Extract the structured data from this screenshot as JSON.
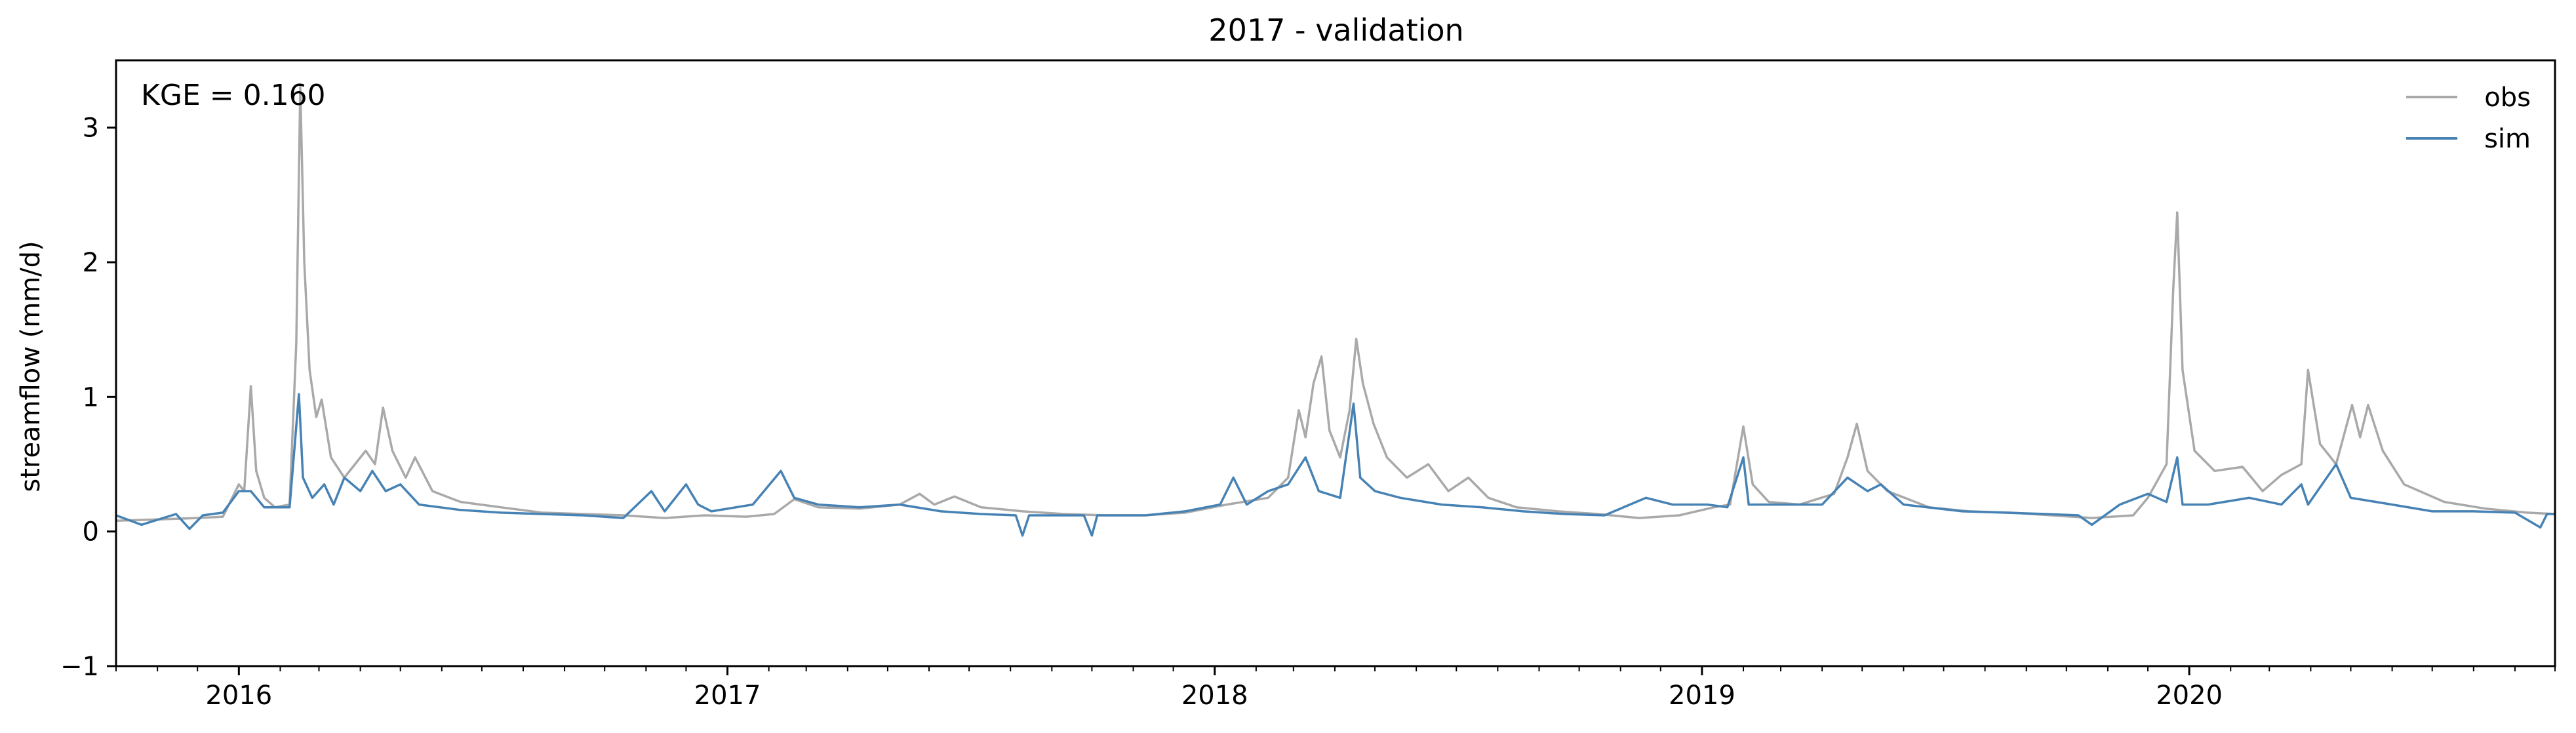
{
  "chart_data": {
    "type": "line",
    "title": "2017 - validation",
    "xlabel": "",
    "ylabel": "streamflow (mm/d)",
    "annotation": "KGE = 0.160",
    "xlim": [
      "2015-10-01",
      "2020-10-01"
    ],
    "ylim": [
      -1,
      3.5
    ],
    "x_ticks": [
      {
        "date": "2016-01-01",
        "label": "2016"
      },
      {
        "date": "2017-01-01",
        "label": "2017"
      },
      {
        "date": "2018-01-01",
        "label": "2018"
      },
      {
        "date": "2019-01-01",
        "label": "2019"
      },
      {
        "date": "2020-01-01",
        "label": "2020"
      }
    ],
    "y_ticks": [
      {
        "value": -1,
        "label": "−1"
      },
      {
        "value": 0,
        "label": "0"
      },
      {
        "value": 1,
        "label": "1"
      },
      {
        "value": 2,
        "label": "2"
      },
      {
        "value": 3,
        "label": "3"
      }
    ],
    "grid": false,
    "legend_position": "top-right",
    "series": [
      {
        "name": "obs",
        "color": "#a9a9a9",
        "points": [
          [
            "2015-10-01",
            0.08
          ],
          [
            "2015-11-01",
            0.09
          ],
          [
            "2015-12-01",
            0.1
          ],
          [
            "2015-12-20",
            0.11
          ],
          [
            "2016-01-01",
            0.35
          ],
          [
            "2016-01-05",
            0.3
          ],
          [
            "2016-01-10",
            1.08
          ],
          [
            "2016-01-14",
            0.45
          ],
          [
            "2016-01-20",
            0.25
          ],
          [
            "2016-01-28",
            0.18
          ],
          [
            "2016-02-08",
            0.2
          ],
          [
            "2016-02-13",
            1.4
          ],
          [
            "2016-02-16",
            3.3
          ],
          [
            "2016-02-19",
            2.0
          ],
          [
            "2016-02-23",
            1.2
          ],
          [
            "2016-02-28",
            0.85
          ],
          [
            "2016-03-03",
            0.98
          ],
          [
            "2016-03-10",
            0.55
          ],
          [
            "2016-03-20",
            0.4
          ],
          [
            "2016-03-28",
            0.5
          ],
          [
            "2016-04-05",
            0.6
          ],
          [
            "2016-04-12",
            0.5
          ],
          [
            "2016-04-18",
            0.92
          ],
          [
            "2016-04-25",
            0.6
          ],
          [
            "2016-05-05",
            0.4
          ],
          [
            "2016-05-12",
            0.55
          ],
          [
            "2016-05-25",
            0.3
          ],
          [
            "2016-06-15",
            0.22
          ],
          [
            "2016-07-15",
            0.18
          ],
          [
            "2016-08-15",
            0.14
          ],
          [
            "2016-09-15",
            0.13
          ],
          [
            "2016-10-15",
            0.12
          ],
          [
            "2016-11-15",
            0.1
          ],
          [
            "2016-12-15",
            0.12
          ],
          [
            "2017-01-15",
            0.11
          ],
          [
            "2017-02-05",
            0.13
          ],
          [
            "2017-02-20",
            0.24
          ],
          [
            "2017-03-10",
            0.18
          ],
          [
            "2017-04-10",
            0.17
          ],
          [
            "2017-05-10",
            0.2
          ],
          [
            "2017-05-25",
            0.28
          ],
          [
            "2017-06-05",
            0.2
          ],
          [
            "2017-06-20",
            0.26
          ],
          [
            "2017-07-10",
            0.18
          ],
          [
            "2017-08-10",
            0.15
          ],
          [
            "2017-09-10",
            0.13
          ],
          [
            "2017-10-10",
            0.12
          ],
          [
            "2017-11-10",
            0.12
          ],
          [
            "2017-12-10",
            0.14
          ],
          [
            "2018-01-10",
            0.2
          ],
          [
            "2018-02-10",
            0.25
          ],
          [
            "2018-02-25",
            0.4
          ],
          [
            "2018-03-05",
            0.9
          ],
          [
            "2018-03-10",
            0.7
          ],
          [
            "2018-03-16",
            1.1
          ],
          [
            "2018-03-22",
            1.3
          ],
          [
            "2018-03-28",
            0.75
          ],
          [
            "2018-04-05",
            0.55
          ],
          [
            "2018-04-12",
            0.9
          ],
          [
            "2018-04-17",
            1.43
          ],
          [
            "2018-04-22",
            1.1
          ],
          [
            "2018-04-30",
            0.8
          ],
          [
            "2018-05-10",
            0.55
          ],
          [
            "2018-05-25",
            0.4
          ],
          [
            "2018-06-10",
            0.5
          ],
          [
            "2018-06-25",
            0.3
          ],
          [
            "2018-07-10",
            0.4
          ],
          [
            "2018-07-25",
            0.25
          ],
          [
            "2018-08-15",
            0.18
          ],
          [
            "2018-09-15",
            0.15
          ],
          [
            "2018-10-15",
            0.13
          ],
          [
            "2018-11-15",
            0.1
          ],
          [
            "2018-12-15",
            0.12
          ],
          [
            "2019-01-10",
            0.18
          ],
          [
            "2019-01-22",
            0.2
          ],
          [
            "2019-02-01",
            0.78
          ],
          [
            "2019-02-08",
            0.35
          ],
          [
            "2019-02-20",
            0.22
          ],
          [
            "2019-03-15",
            0.2
          ],
          [
            "2019-04-10",
            0.28
          ],
          [
            "2019-04-20",
            0.55
          ],
          [
            "2019-04-27",
            0.8
          ],
          [
            "2019-05-05",
            0.45
          ],
          [
            "2019-05-20",
            0.3
          ],
          [
            "2019-06-20",
            0.18
          ],
          [
            "2019-07-20",
            0.15
          ],
          [
            "2019-08-20",
            0.14
          ],
          [
            "2019-09-20",
            0.12
          ],
          [
            "2019-10-20",
            0.1
          ],
          [
            "2019-11-20",
            0.12
          ],
          [
            "2019-12-01",
            0.25
          ],
          [
            "2019-12-15",
            0.5
          ],
          [
            "2019-12-20",
            1.8
          ],
          [
            "2019-12-23",
            2.37
          ],
          [
            "2019-12-27",
            1.2
          ],
          [
            "2020-01-05",
            0.6
          ],
          [
            "2020-01-20",
            0.45
          ],
          [
            "2020-02-10",
            0.48
          ],
          [
            "2020-02-25",
            0.3
          ],
          [
            "2020-03-10",
            0.42
          ],
          [
            "2020-03-25",
            0.5
          ],
          [
            "2020-03-30",
            1.2
          ],
          [
            "2020-04-08",
            0.65
          ],
          [
            "2020-04-20",
            0.5
          ],
          [
            "2020-05-02",
            0.94
          ],
          [
            "2020-05-08",
            0.7
          ],
          [
            "2020-05-14",
            0.94
          ],
          [
            "2020-05-25",
            0.6
          ],
          [
            "2020-06-10",
            0.35
          ],
          [
            "2020-07-10",
            0.22
          ],
          [
            "2020-08-10",
            0.17
          ],
          [
            "2020-09-10",
            0.14
          ],
          [
            "2020-10-01",
            0.13
          ]
        ]
      },
      {
        "name": "sim",
        "color": "#4682b4",
        "points": [
          [
            "2015-10-01",
            0.12
          ],
          [
            "2015-10-20",
            0.05
          ],
          [
            "2015-11-15",
            0.13
          ],
          [
            "2015-11-25",
            0.02
          ],
          [
            "2015-12-05",
            0.12
          ],
          [
            "2015-12-20",
            0.14
          ],
          [
            "2016-01-01",
            0.3
          ],
          [
            "2016-01-10",
            0.3
          ],
          [
            "2016-01-20",
            0.18
          ],
          [
            "2016-02-08",
            0.18
          ],
          [
            "2016-02-15",
            1.02
          ],
          [
            "2016-02-18",
            0.4
          ],
          [
            "2016-02-25",
            0.25
          ],
          [
            "2016-03-05",
            0.35
          ],
          [
            "2016-03-12",
            0.2
          ],
          [
            "2016-03-20",
            0.4
          ],
          [
            "2016-04-01",
            0.3
          ],
          [
            "2016-04-10",
            0.45
          ],
          [
            "2016-04-20",
            0.3
          ],
          [
            "2016-05-01",
            0.35
          ],
          [
            "2016-05-15",
            0.2
          ],
          [
            "2016-06-15",
            0.16
          ],
          [
            "2016-07-15",
            0.14
          ],
          [
            "2016-08-15",
            0.13
          ],
          [
            "2016-09-15",
            0.12
          ],
          [
            "2016-10-15",
            0.1
          ],
          [
            "2016-11-05",
            0.3
          ],
          [
            "2016-11-15",
            0.15
          ],
          [
            "2016-12-01",
            0.35
          ],
          [
            "2016-12-10",
            0.2
          ],
          [
            "2016-12-20",
            0.15
          ],
          [
            "2017-01-20",
            0.2
          ],
          [
            "2017-02-10",
            0.45
          ],
          [
            "2017-02-20",
            0.25
          ],
          [
            "2017-03-10",
            0.2
          ],
          [
            "2017-04-10",
            0.18
          ],
          [
            "2017-05-10",
            0.2
          ],
          [
            "2017-06-10",
            0.15
          ],
          [
            "2017-07-10",
            0.13
          ],
          [
            "2017-08-05",
            0.12
          ],
          [
            "2017-08-10",
            -0.03
          ],
          [
            "2017-08-15",
            0.12
          ],
          [
            "2017-09-10",
            0.12
          ],
          [
            "2017-09-25",
            0.12
          ],
          [
            "2017-10-01",
            -0.03
          ],
          [
            "2017-10-05",
            0.12
          ],
          [
            "2017-11-10",
            0.12
          ],
          [
            "2017-12-10",
            0.15
          ],
          [
            "2018-01-05",
            0.2
          ],
          [
            "2018-01-15",
            0.4
          ],
          [
            "2018-01-25",
            0.2
          ],
          [
            "2018-02-10",
            0.3
          ],
          [
            "2018-02-25",
            0.35
          ],
          [
            "2018-03-10",
            0.55
          ],
          [
            "2018-03-20",
            0.3
          ],
          [
            "2018-04-05",
            0.25
          ],
          [
            "2018-04-15",
            0.95
          ],
          [
            "2018-04-20",
            0.4
          ],
          [
            "2018-05-01",
            0.3
          ],
          [
            "2018-05-20",
            0.25
          ],
          [
            "2018-06-20",
            0.2
          ],
          [
            "2018-07-20",
            0.18
          ],
          [
            "2018-08-20",
            0.15
          ],
          [
            "2018-09-20",
            0.13
          ],
          [
            "2018-10-20",
            0.12
          ],
          [
            "2018-11-20",
            0.25
          ],
          [
            "2018-12-10",
            0.2
          ],
          [
            "2019-01-05",
            0.2
          ],
          [
            "2019-01-20",
            0.18
          ],
          [
            "2019-02-01",
            0.55
          ],
          [
            "2019-02-05",
            0.2
          ],
          [
            "2019-03-01",
            0.2
          ],
          [
            "2019-04-01",
            0.2
          ],
          [
            "2019-04-20",
            0.4
          ],
          [
            "2019-05-05",
            0.3
          ],
          [
            "2019-05-15",
            0.35
          ],
          [
            "2019-06-01",
            0.2
          ],
          [
            "2019-07-15",
            0.15
          ],
          [
            "2019-08-15",
            0.14
          ],
          [
            "2019-09-15",
            0.13
          ],
          [
            "2019-10-10",
            0.12
          ],
          [
            "2019-10-20",
            0.05
          ],
          [
            "2019-11-10",
            0.2
          ],
          [
            "2019-12-01",
            0.28
          ],
          [
            "2019-12-15",
            0.22
          ],
          [
            "2019-12-23",
            0.55
          ],
          [
            "2019-12-27",
            0.2
          ],
          [
            "2020-01-15",
            0.2
          ],
          [
            "2020-02-15",
            0.25
          ],
          [
            "2020-03-10",
            0.2
          ],
          [
            "2020-03-25",
            0.35
          ],
          [
            "2020-03-30",
            0.2
          ],
          [
            "2020-04-20",
            0.5
          ],
          [
            "2020-05-01",
            0.25
          ],
          [
            "2020-06-01",
            0.2
          ],
          [
            "2020-07-01",
            0.15
          ],
          [
            "2020-08-01",
            0.15
          ],
          [
            "2020-09-01",
            0.14
          ],
          [
            "2020-09-20",
            0.03
          ],
          [
            "2020-09-25",
            0.13
          ],
          [
            "2020-10-01",
            0.13
          ]
        ]
      }
    ]
  }
}
